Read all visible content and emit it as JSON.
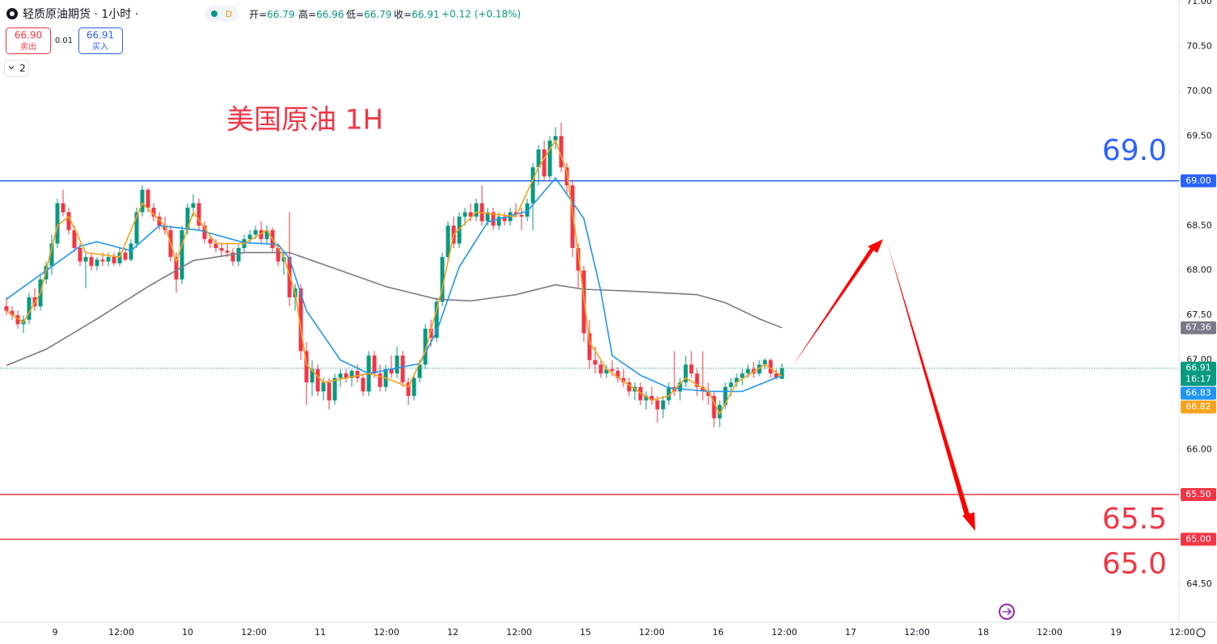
{
  "chart_data": {
    "type": "candlestick",
    "title": "美国原油 1H",
    "header": {
      "symbol": "轻质原油期货 · 1小时 ·",
      "badge": "D",
      "ohlc": [
        {
          "label": "开=",
          "value": "66.79"
        },
        {
          "label": "高=",
          "value": "66.96"
        },
        {
          "label": "低=",
          "value": "66.79"
        },
        {
          "label": "收=",
          "value": "66.91"
        }
      ],
      "change": "+0.12 (+0.18%)",
      "sell": {
        "price": "66.90",
        "label": "卖出"
      },
      "spread": "0.01",
      "buy": {
        "price": "66.91",
        "label": "买入"
      },
      "indicators": "2"
    },
    "up_color": "#089981",
    "down_color": "#f23645",
    "categories": [
      "9",
      "12:00",
      "10",
      "12:00",
      "11",
      "12:00",
      "12",
      "12:00",
      "15",
      "12:00",
      "16",
      "12:00",
      "17",
      "12:00",
      "18",
      "12:00",
      "19",
      "12:00"
    ],
    "ylim": [
      64.075,
      71.0
    ],
    "yticks": [
      {
        "value": 64.5,
        "label": "64.50"
      },
      {
        "value": 65.0,
        "label": "65.00"
      },
      {
        "value": 65.5,
        "label": "65.50"
      },
      {
        "value": 66.0,
        "label": "66.00"
      },
      {
        "value": 66.5,
        "label": "66.50"
      },
      {
        "value": 67.0,
        "label": "67.00"
      },
      {
        "value": 67.5,
        "label": "67.50"
      },
      {
        "value": 68.0,
        "label": "68.00"
      },
      {
        "value": 68.5,
        "label": "68.50"
      },
      {
        "value": 69.0,
        "label": "69.00"
      },
      {
        "value": 69.5,
        "label": "69.50"
      },
      {
        "value": 70.0,
        "label": "70.00"
      },
      {
        "value": 70.5,
        "label": "70.50"
      },
      {
        "value": 71.0,
        "label": "71.00"
      }
    ],
    "candles": [
      [
        67.6,
        67.7,
        67.5,
        67.55
      ],
      [
        67.55,
        67.6,
        67.45,
        67.5
      ],
      [
        67.5,
        67.55,
        67.35,
        67.4
      ],
      [
        67.4,
        67.5,
        67.3,
        67.45
      ],
      [
        67.45,
        67.75,
        67.4,
        67.7
      ],
      [
        67.7,
        67.8,
        67.55,
        67.6
      ],
      [
        67.6,
        67.95,
        67.55,
        67.9
      ],
      [
        67.9,
        68.1,
        67.85,
        68.05
      ],
      [
        68.05,
        68.4,
        67.95,
        68.3
      ],
      [
        68.3,
        68.8,
        68.25,
        68.75
      ],
      [
        68.75,
        68.9,
        68.6,
        68.65
      ],
      [
        68.65,
        68.7,
        68.4,
        68.45
      ],
      [
        68.45,
        68.5,
        68.2,
        68.25
      ],
      [
        68.25,
        68.3,
        68.05,
        68.1
      ],
      [
        68.1,
        68.2,
        67.8,
        68.15
      ],
      [
        68.15,
        68.2,
        68.0,
        68.05
      ],
      [
        68.05,
        68.15,
        68.0,
        68.12
      ],
      [
        68.12,
        68.2,
        68.05,
        68.1
      ],
      [
        68.1,
        68.2,
        68.05,
        68.15
      ],
      [
        68.15,
        68.2,
        68.05,
        68.08
      ],
      [
        68.08,
        68.25,
        68.05,
        68.2
      ],
      [
        68.2,
        68.25,
        68.1,
        68.12
      ],
      [
        68.12,
        68.35,
        68.1,
        68.3
      ],
      [
        68.3,
        68.7,
        68.25,
        68.65
      ],
      [
        68.65,
        68.95,
        68.6,
        68.9
      ],
      [
        68.9,
        68.92,
        68.65,
        68.7
      ],
      [
        68.7,
        68.75,
        68.55,
        68.6
      ],
      [
        68.6,
        68.65,
        68.45,
        68.5
      ],
      [
        68.5,
        68.6,
        68.4,
        68.45
      ],
      [
        68.45,
        68.5,
        68.1,
        68.15
      ],
      [
        68.15,
        68.2,
        67.75,
        67.9
      ],
      [
        67.9,
        68.5,
        67.85,
        68.45
      ],
      [
        68.45,
        68.75,
        68.4,
        68.7
      ],
      [
        68.7,
        68.85,
        68.6,
        68.75
      ],
      [
        68.75,
        68.8,
        68.45,
        68.5
      ],
      [
        68.5,
        68.55,
        68.3,
        68.35
      ],
      [
        68.35,
        68.4,
        68.25,
        68.3
      ],
      [
        68.3,
        68.35,
        68.2,
        68.25
      ],
      [
        68.25,
        68.3,
        68.15,
        68.22
      ],
      [
        68.22,
        68.3,
        68.15,
        68.2
      ],
      [
        68.2,
        68.25,
        68.05,
        68.1
      ],
      [
        68.1,
        68.3,
        68.05,
        68.25
      ],
      [
        68.25,
        68.4,
        68.2,
        68.35
      ],
      [
        68.35,
        68.45,
        68.3,
        68.4
      ],
      [
        68.4,
        68.5,
        68.35,
        68.45
      ],
      [
        68.45,
        68.55,
        68.3,
        68.35
      ],
      [
        68.35,
        68.5,
        68.3,
        68.45
      ],
      [
        68.45,
        68.48,
        68.2,
        68.25
      ],
      [
        68.25,
        68.3,
        68.05,
        68.1
      ],
      [
        68.1,
        68.2,
        67.95,
        68.15
      ],
      [
        68.15,
        68.65,
        67.6,
        67.7
      ],
      [
        67.7,
        67.85,
        67.55,
        67.8
      ],
      [
        67.8,
        67.85,
        67.0,
        67.1
      ],
      [
        67.1,
        67.2,
        66.5,
        66.75
      ],
      [
        66.75,
        67.0,
        66.6,
        66.9
      ],
      [
        66.9,
        66.95,
        66.6,
        66.65
      ],
      [
        66.65,
        66.8,
        66.55,
        66.75
      ],
      [
        66.75,
        66.8,
        66.45,
        66.55
      ],
      [
        66.55,
        66.85,
        66.5,
        66.8
      ],
      [
        66.8,
        66.9,
        66.7,
        66.85
      ],
      [
        66.85,
        66.9,
        66.75,
        66.8
      ],
      [
        66.8,
        66.9,
        66.7,
        66.88
      ],
      [
        66.88,
        66.95,
        66.75,
        66.8
      ],
      [
        66.8,
        66.85,
        66.6,
        66.65
      ],
      [
        66.65,
        67.1,
        66.6,
        67.05
      ],
      [
        67.05,
        67.1,
        66.8,
        66.85
      ],
      [
        66.85,
        66.95,
        66.65,
        66.7
      ],
      [
        66.7,
        66.95,
        66.65,
        66.9
      ],
      [
        66.9,
        67.05,
        66.8,
        66.85
      ],
      [
        66.85,
        67.15,
        66.8,
        67.05
      ],
      [
        67.05,
        67.1,
        66.7,
        66.75
      ],
      [
        66.75,
        66.8,
        66.5,
        66.6
      ],
      [
        66.6,
        66.85,
        66.55,
        66.8
      ],
      [
        66.8,
        67.0,
        66.75,
        66.95
      ],
      [
        66.95,
        67.4,
        66.9,
        67.35
      ],
      [
        67.35,
        67.45,
        67.15,
        67.25
      ],
      [
        67.25,
        67.7,
        67.2,
        67.65
      ],
      [
        67.65,
        68.2,
        67.6,
        68.15
      ],
      [
        68.15,
        68.55,
        68.1,
        68.5
      ],
      [
        68.5,
        68.6,
        68.25,
        68.3
      ],
      [
        68.3,
        68.65,
        68.25,
        68.6
      ],
      [
        68.6,
        68.7,
        68.5,
        68.65
      ],
      [
        68.65,
        68.75,
        68.55,
        68.6
      ],
      [
        68.6,
        68.8,
        68.55,
        68.75
      ],
      [
        68.75,
        68.95,
        68.5,
        68.55
      ],
      [
        68.55,
        68.7,
        68.5,
        68.65
      ],
      [
        68.65,
        68.7,
        68.45,
        68.5
      ],
      [
        68.5,
        68.65,
        68.45,
        68.6
      ],
      [
        68.6,
        68.65,
        68.5,
        68.55
      ],
      [
        68.55,
        68.7,
        68.5,
        68.65
      ],
      [
        68.65,
        68.75,
        68.6,
        68.62
      ],
      [
        68.62,
        68.7,
        68.45,
        68.6
      ],
      [
        68.6,
        68.8,
        68.55,
        68.75
      ],
      [
        68.75,
        69.2,
        68.45,
        69.15
      ],
      [
        69.15,
        69.4,
        68.95,
        69.35
      ],
      [
        69.35,
        69.45,
        69.0,
        69.05
      ],
      [
        69.05,
        69.5,
        69.0,
        69.45
      ],
      [
        69.45,
        69.6,
        69.35,
        69.5
      ],
      [
        69.5,
        69.65,
        69.1,
        69.15
      ],
      [
        69.15,
        69.2,
        68.85,
        68.95
      ],
      [
        68.95,
        69.0,
        68.15,
        68.25
      ],
      [
        68.25,
        68.3,
        67.8,
        68.0
      ],
      [
        68.0,
        68.05,
        67.2,
        67.3
      ],
      [
        67.3,
        67.45,
        66.9,
        67.0
      ],
      [
        67.0,
        67.15,
        66.85,
        66.95
      ],
      [
        66.95,
        67.0,
        66.8,
        66.85
      ],
      [
        66.85,
        66.95,
        66.8,
        66.9
      ],
      [
        66.9,
        67.0,
        66.82,
        66.88
      ],
      [
        66.88,
        66.92,
        66.75,
        66.8
      ],
      [
        66.8,
        66.9,
        66.7,
        66.75
      ],
      [
        66.75,
        66.8,
        66.6,
        66.65
      ],
      [
        66.65,
        66.75,
        66.55,
        66.7
      ],
      [
        66.7,
        66.75,
        66.5,
        66.55
      ],
      [
        66.55,
        66.65,
        66.45,
        66.6
      ],
      [
        66.6,
        66.7,
        66.5,
        66.55
      ],
      [
        66.55,
        66.6,
        66.3,
        66.45
      ],
      [
        66.45,
        66.6,
        66.35,
        66.55
      ],
      [
        66.55,
        66.75,
        66.5,
        66.7
      ],
      [
        66.7,
        67.1,
        66.6,
        66.65
      ],
      [
        66.65,
        66.8,
        66.55,
        66.75
      ],
      [
        66.75,
        67.05,
        66.7,
        66.95
      ],
      [
        66.95,
        67.1,
        66.8,
        66.85
      ],
      [
        66.85,
        66.9,
        66.6,
        66.7
      ],
      [
        66.7,
        67.1,
        66.55,
        66.65
      ],
      [
        66.65,
        66.75,
        66.5,
        66.6
      ],
      [
        66.6,
        66.65,
        66.25,
        66.35
      ],
      [
        66.35,
        66.55,
        66.25,
        66.5
      ],
      [
        66.5,
        66.75,
        66.45,
        66.7
      ],
      [
        66.7,
        66.8,
        66.6,
        66.75
      ],
      [
        66.75,
        66.85,
        66.7,
        66.8
      ],
      [
        66.8,
        66.9,
        66.72,
        66.85
      ],
      [
        66.85,
        66.95,
        66.8,
        66.9
      ],
      [
        66.9,
        66.98,
        66.8,
        66.85
      ],
      [
        66.85,
        67.0,
        66.82,
        66.95
      ],
      [
        66.95,
        67.02,
        66.9,
        67.0
      ],
      [
        67.0,
        67.02,
        66.8,
        66.85
      ],
      [
        66.85,
        66.9,
        66.78,
        66.8
      ],
      [
        66.79,
        66.96,
        66.79,
        66.91
      ]
    ],
    "series": [
      {
        "color": "#787b86",
        "x": [
          0,
          7,
          16,
          25,
          33,
          42,
          50,
          59,
          67,
          76,
          82,
          90,
          97,
          102,
          110,
          122,
          127,
          133,
          137
        ],
        "values": [
          66.94,
          67.12,
          67.46,
          67.82,
          68.11,
          68.2,
          68.2,
          68.0,
          67.82,
          67.68,
          67.66,
          67.73,
          67.84,
          67.79,
          67.77,
          67.73,
          67.64,
          67.46,
          67.36
        ]
      },
      {
        "color": "#2196f3",
        "x": [
          0,
          13,
          16,
          22,
          27,
          34,
          42,
          48,
          50,
          53,
          59,
          64,
          73,
          76,
          80,
          85,
          92,
          97,
          102,
          105,
          107,
          112,
          117,
          124,
          130,
          137
        ],
        "values": [
          67.68,
          68.27,
          68.32,
          68.22,
          68.5,
          68.45,
          68.31,
          68.29,
          68.13,
          67.55,
          67.0,
          66.85,
          66.96,
          67.32,
          68.04,
          68.54,
          68.66,
          69.03,
          68.58,
          67.77,
          67.05,
          66.83,
          66.69,
          66.65,
          66.65,
          66.83
        ]
      },
      {
        "color": "#f7a21b",
        "x": [
          0,
          3,
          6,
          9,
          11,
          14,
          20,
          24,
          28,
          30,
          33,
          37,
          42,
          46,
          49,
          51,
          53,
          56,
          60,
          64,
          67,
          71,
          74,
          77,
          79,
          83,
          90,
          94,
          97,
          99,
          101,
          103,
          106,
          110,
          114,
          117,
          120,
          124,
          126,
          129,
          134,
          137
        ],
        "values": [
          67.55,
          67.42,
          67.75,
          68.5,
          68.6,
          68.2,
          68.15,
          68.75,
          68.5,
          68.1,
          68.65,
          68.3,
          68.3,
          68.45,
          68.15,
          67.75,
          66.95,
          66.75,
          66.8,
          66.85,
          66.8,
          66.7,
          67.1,
          67.8,
          68.4,
          68.65,
          68.6,
          69.15,
          69.45,
          69.1,
          68.2,
          67.2,
          66.9,
          66.72,
          66.55,
          66.6,
          66.8,
          66.65,
          66.4,
          66.75,
          66.95,
          66.82
        ]
      }
    ],
    "levels": [
      {
        "value": 69.0,
        "color": "#2962ff",
        "label": "69.0"
      },
      {
        "value": 65.5,
        "color": "#f23645",
        "label": "65.5"
      },
      {
        "value": 65.0,
        "color": "#f23645",
        "label": "65.0"
      }
    ],
    "last_price": {
      "value": 66.91,
      "color": "#089981"
    },
    "price_tags": [
      {
        "value": 69.0,
        "label": "69.00",
        "color": "#2962ff"
      },
      {
        "value": 67.36,
        "label": "67.36",
        "color": "#787b86"
      },
      {
        "value": 66.91,
        "label": "66.91",
        "sub": "16:17",
        "color": "#089981"
      },
      {
        "value": 66.83,
        "label": "66.83",
        "color": "#2196f3"
      },
      {
        "value": 66.82,
        "label": "66.82",
        "color": "#f7a21b"
      },
      {
        "value": 65.5,
        "label": "65.50",
        "color": "#f23645"
      },
      {
        "value": 65.0,
        "label": "65.00",
        "color": "#f23645"
      }
    ]
  }
}
